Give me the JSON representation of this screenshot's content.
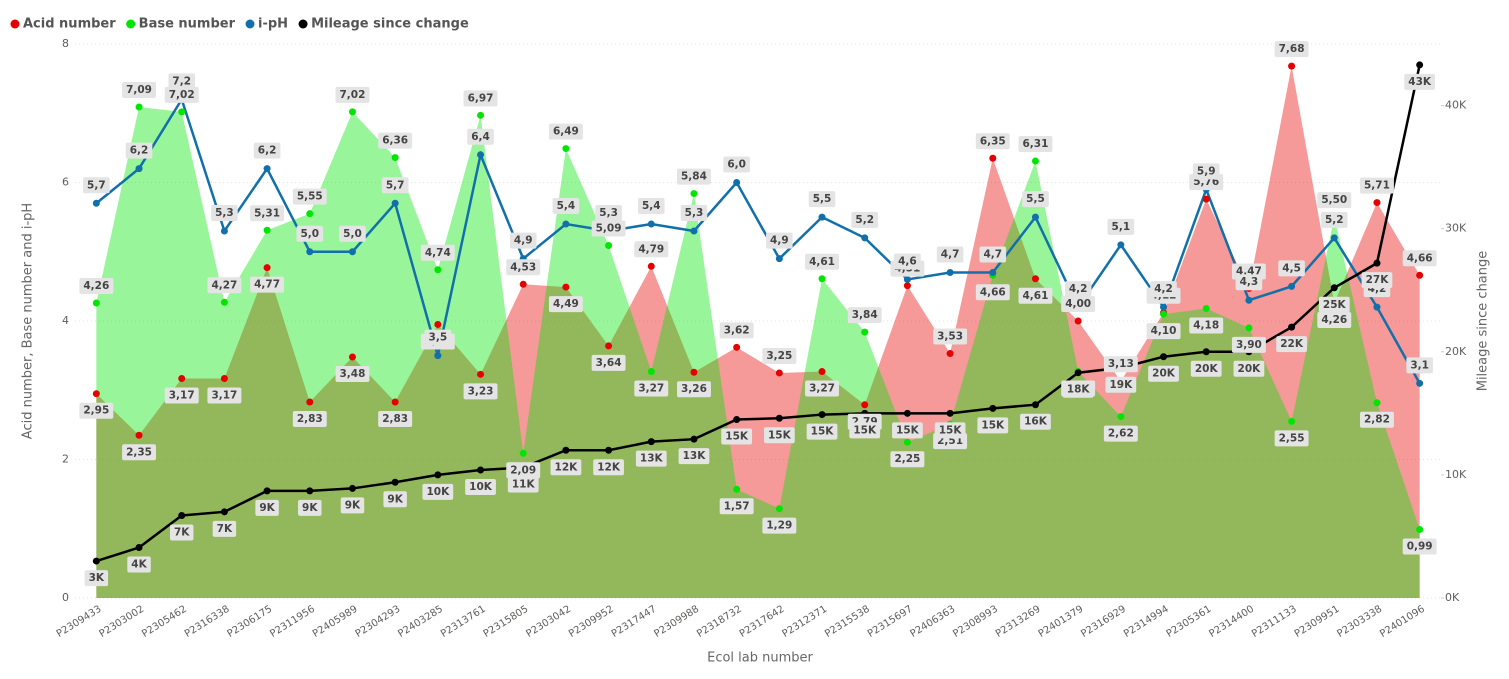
{
  "chart_data": {
    "type": "combo",
    "x_label": "Ecol lab number",
    "y_label": "Acid number, Base number and i-pH",
    "y2_label": "Mileage since change",
    "legend": "top-left",
    "grid": true,
    "categories": [
      "P2309433",
      "P2303002",
      "P2305462",
      "P2316338",
      "P2306175",
      "P2311956",
      "P2405989",
      "P2304293",
      "P2403285",
      "P2313761",
      "P2315805",
      "P2303042",
      "P2309952",
      "P2317447",
      "P2309988",
      "P2318732",
      "P2317642",
      "P2312371",
      "P2315538",
      "P2315697",
      "P2406363",
      "P2308993",
      "P2313269",
      "P2401379",
      "P2316929",
      "P2314994",
      "P2305361",
      "P2314400",
      "P2311133",
      "P2309951",
      "P2303338",
      "P2401096"
    ],
    "ylim": [
      0,
      8
    ],
    "yticks": [
      0,
      2,
      4,
      6,
      8
    ],
    "y2lim": [
      0,
      45000
    ],
    "y2ticks": [
      {
        "value": 0,
        "label": "0K"
      },
      {
        "value": 10000,
        "label": "10K"
      },
      {
        "value": 20000,
        "label": "20K"
      },
      {
        "value": 30000,
        "label": "30K"
      },
      {
        "value": 40000,
        "label": "40K"
      }
    ],
    "series": [
      {
        "name": "Acid number",
        "color": "#e60000",
        "kind": "area",
        "values": [
          2.95,
          2.35,
          3.17,
          3.17,
          4.77,
          2.83,
          3.48,
          2.83,
          3.95,
          3.23,
          4.53,
          4.49,
          3.64,
          4.79,
          3.26,
          3.62,
          3.25,
          3.27,
          2.79,
          4.51,
          3.53,
          6.35,
          4.61,
          4.0,
          3.13,
          4.12,
          5.76,
          4.47,
          7.68,
          4.26,
          5.71,
          4.66
        ],
        "value_labels": [
          "2,95",
          "2,35",
          "3,17",
          "3,17",
          "4,77",
          "2,83",
          "3,48",
          "2,83",
          "3,95",
          "3,23",
          "4,53",
          "4,49",
          "3,64",
          "4,79",
          "3,26",
          "3,62",
          "3,25",
          "3,27",
          "2,79",
          "4,51",
          "3,53",
          "6,35",
          "4,61",
          "4,00",
          "3,13",
          "4,12",
          "5,76",
          "4,47",
          "7,68",
          "4,26",
          "5,71",
          "4,66"
        ]
      },
      {
        "name": "Base number",
        "color": "#00e600",
        "kind": "area",
        "values": [
          4.26,
          7.09,
          7.02,
          4.27,
          5.31,
          5.55,
          7.02,
          6.36,
          4.74,
          6.97,
          2.09,
          6.49,
          5.09,
          3.27,
          5.84,
          1.57,
          1.29,
          4.61,
          3.84,
          2.25,
          2.51,
          4.66,
          6.31,
          3.27,
          2.62,
          4.1,
          4.18,
          3.9,
          2.55,
          5.5,
          2.82,
          0.99
        ],
        "value_labels": [
          "4,26",
          "7,09",
          "7,02",
          "4,27",
          "5,31",
          "5,55",
          "7,02",
          "6,36",
          "4,74",
          "6,97",
          "2,09",
          "6,49",
          "5,09",
          "3,27",
          "5,84",
          "1,57",
          "1,29",
          "4,61",
          "3,84",
          "2,25",
          "2,51",
          "4,66",
          "6,31",
          "3,27",
          "2,62",
          "4,10",
          "4,18",
          "3,90",
          "2,55",
          "5,50",
          "2,82",
          "0,99"
        ]
      },
      {
        "name": "i-pH",
        "color": "#1170aa",
        "kind": "line",
        "values": [
          5.7,
          6.2,
          7.2,
          5.3,
          6.2,
          5.0,
          5.0,
          5.7,
          3.5,
          6.4,
          4.9,
          5.4,
          5.3,
          5.4,
          5.3,
          6.0,
          4.9,
          5.5,
          5.2,
          4.6,
          4.7,
          4.7,
          5.5,
          4.2,
          5.1,
          4.2,
          5.9,
          4.3,
          4.5,
          5.2,
          4.2,
          3.1
        ],
        "value_labels": [
          "5,7",
          "6,2",
          "7,2",
          "5,3",
          "6,2",
          "5,0",
          "5,0",
          "5,7",
          "3,5",
          "6,4",
          "4,9",
          "5,4",
          "5,3",
          "5,4",
          "5,3",
          "6,0",
          "4,9",
          "5,5",
          "5,2",
          "4,6",
          "4,7",
          "4,7",
          "5,5",
          "4,2",
          "5,1",
          "4,2",
          "5,9",
          "4,3",
          "4,5",
          "5,2",
          "4,2",
          "3,1"
        ]
      },
      {
        "name": "Mileage since change",
        "color": "#000000",
        "kind": "line",
        "axis": "y2",
        "values": [
          3000,
          4100,
          6700,
          7000,
          8700,
          8700,
          8900,
          9400,
          10000,
          10400,
          10600,
          12000,
          12000,
          12700,
          12900,
          14500,
          14600,
          14900,
          15000,
          15000,
          15000,
          15400,
          15700,
          18300,
          18700,
          19600,
          20000,
          20000,
          22000,
          25200,
          27200,
          43300
        ],
        "value_labels": [
          "3K",
          "4K",
          "7K",
          "7K",
          "9K",
          "9K",
          "9K",
          "9K",
          "10K",
          "10K",
          "11K",
          "12K",
          "12K",
          "13K",
          "13K",
          "15K",
          "15K",
          "15K",
          "15K",
          "15K",
          "15K",
          "15K",
          "16K",
          "18K",
          "19K",
          "20K",
          "20K",
          "20K",
          "22K",
          "25K",
          "27K",
          "43K"
        ]
      }
    ]
  }
}
